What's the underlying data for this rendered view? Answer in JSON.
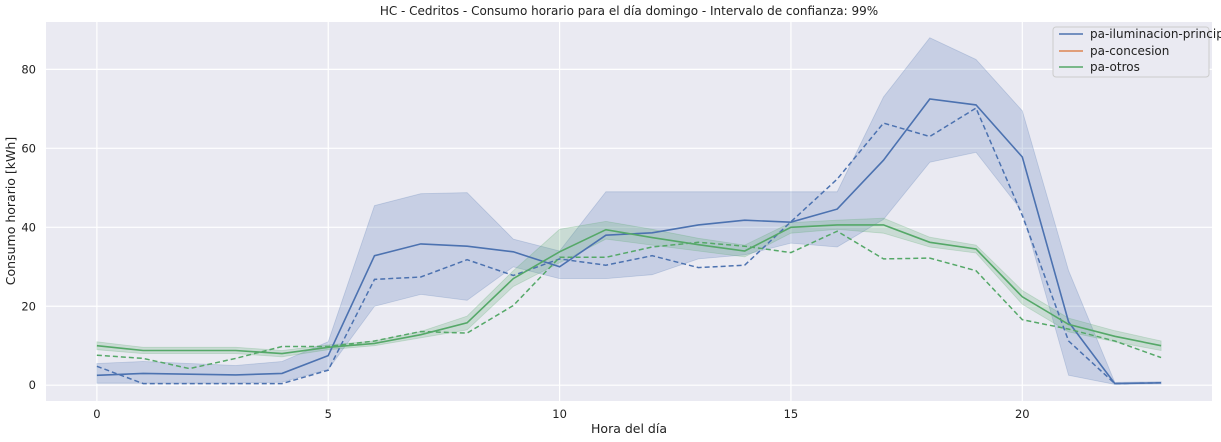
{
  "chart_data": {
    "type": "line",
    "title": "HC - Cedritos - Consumo horario para el día domingo - Intervalo de confianza: 99%",
    "xlabel": "Hora del día",
    "ylabel": "Consumo horario [kWh]",
    "xlim": [
      -1.1,
      24.1
    ],
    "ylim": [
      -4,
      92
    ],
    "xticks": [
      0,
      5,
      10,
      15,
      20
    ],
    "yticks": [
      0,
      20,
      40,
      60,
      80
    ],
    "grid": true,
    "legend_position": "top-right",
    "x": [
      0,
      1,
      2,
      3,
      4,
      5,
      6,
      7,
      8,
      9,
      10,
      11,
      12,
      13,
      14,
      15,
      16,
      17,
      18,
      19,
      20,
      21,
      22,
      23
    ],
    "series": [
      {
        "name": "pa-iluminacion-principal",
        "color": "#4c72b0",
        "mean": [
          2.5,
          3,
          2.8,
          2.6,
          3,
          7.5,
          32.8,
          35.8,
          35.2,
          33.8,
          30,
          38,
          38.6,
          40.6,
          41.8,
          41.3,
          44.6,
          57,
          72.5,
          71,
          57.8,
          16,
          0.4,
          0.6
        ],
        "lower": [
          0.5,
          0.5,
          0.5,
          0.5,
          0.8,
          4,
          20,
          23,
          21.5,
          30,
          27,
          27,
          28,
          32,
          33,
          36,
          35,
          42,
          56.5,
          59,
          44,
          2.5,
          0.2,
          0.3
        ],
        "upper": [
          5.5,
          6,
          5.5,
          5,
          6,
          11,
          45.5,
          48.5,
          48.8,
          37,
          34,
          49,
          49,
          49,
          49,
          49,
          49,
          73,
          88,
          82.5,
          69.5,
          29,
          0.7,
          0.9
        ],
        "reference": [
          4.8,
          0.4,
          0.4,
          0.4,
          0.4,
          3.8,
          26.8,
          27.4,
          31.8,
          27.8,
          32,
          30.4,
          32.8,
          29.8,
          30.4,
          41.4,
          52.2,
          66.4,
          63,
          70.2,
          43,
          11.2,
          0.4,
          0.6
        ]
      },
      {
        "name": "pa-concesion",
        "color": "#dd8452",
        "mean": [],
        "lower": [],
        "upper": [],
        "reference": []
      },
      {
        "name": "pa-otros",
        "color": "#55a868",
        "mean": [
          10,
          8.8,
          8.8,
          8.8,
          8,
          9.6,
          10.6,
          12.8,
          15.8,
          27,
          33.8,
          39.4,
          37.4,
          35.6,
          34,
          40,
          40.6,
          40.6,
          36.2,
          34.5,
          22.4,
          15.4,
          12.4,
          10
        ],
        "lower": [
          9,
          8,
          8,
          8,
          7.2,
          9,
          10,
          12,
          14,
          25,
          31,
          37,
          35.5,
          34,
          32.5,
          38.5,
          39.5,
          38.5,
          35,
          33.5,
          20.5,
          13.5,
          11,
          8.8
        ],
        "upper": [
          11,
          9.6,
          9.6,
          9.6,
          8.8,
          10.2,
          11.2,
          13.6,
          17.5,
          29,
          39.5,
          41.5,
          39.5,
          37.2,
          35.5,
          41.2,
          41.8,
          42.3,
          37.5,
          35.5,
          24,
          17,
          13.8,
          11.2
        ],
        "reference": [
          7.6,
          6.8,
          4.2,
          6.8,
          9.8,
          9.8,
          11.2,
          13.6,
          13.2,
          20.2,
          32.4,
          32.4,
          35,
          36.2,
          35.2,
          33.6,
          39,
          32,
          32.2,
          29,
          16.6,
          14.2,
          11.2,
          7
        ]
      }
    ],
    "legend": [
      "pa-iluminacion-principal",
      "pa-concesion",
      "pa-otros"
    ]
  }
}
